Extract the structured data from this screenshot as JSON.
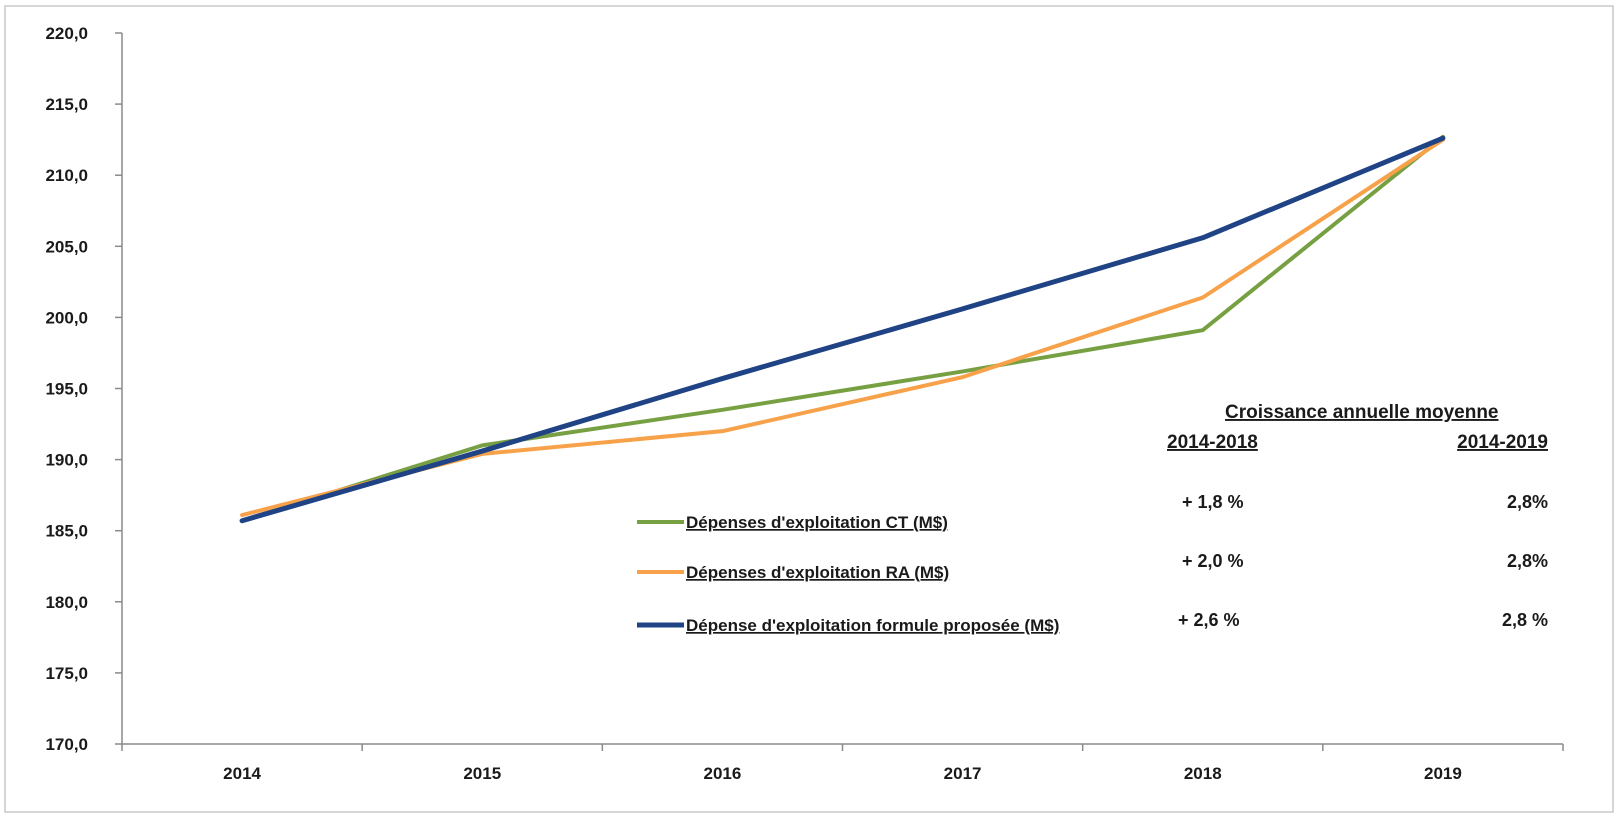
{
  "chart_data": {
    "type": "line",
    "title": "",
    "xlabel": "",
    "ylabel": "",
    "categories": [
      "2014",
      "2015",
      "2016",
      "2017",
      "2018",
      "2019"
    ],
    "ylim": [
      170,
      220
    ],
    "ytick_step": 5,
    "ytick_labels": [
      "170,0",
      "175,0",
      "180,0",
      "185,0",
      "190,0",
      "195,0",
      "200,0",
      "205,0",
      "210,0",
      "215,0",
      "220,0"
    ],
    "grid": false,
    "legend_position": "center-right",
    "series": [
      {
        "name": "Dépenses d'exploitation CT (M$)",
        "color": "#77a043",
        "values": [
          185.7,
          191.0,
          193.5,
          196.2,
          199.1,
          212.7
        ]
      },
      {
        "name": "Dépenses d'exploitation RA (M$)",
        "color": "#f7a24a",
        "values": [
          186.1,
          190.4,
          192.0,
          195.8,
          201.4,
          212.5
        ]
      },
      {
        "name": "Dépense d'exploitation formule proposée (M$)",
        "color": "#1f4384",
        "values": [
          185.7,
          190.6,
          195.7,
          200.6,
          205.6,
          212.6
        ]
      }
    ]
  },
  "growth_table": {
    "title": "Croissance annuelle moyenne",
    "periods": [
      "2014-2018",
      "2014-2019"
    ],
    "rows": [
      [
        "+ 1,8 %",
        "2,8%"
      ],
      [
        "+ 2,0 %",
        "2,8%"
      ],
      [
        "+ 2,6 %",
        "2,8 %"
      ]
    ]
  }
}
